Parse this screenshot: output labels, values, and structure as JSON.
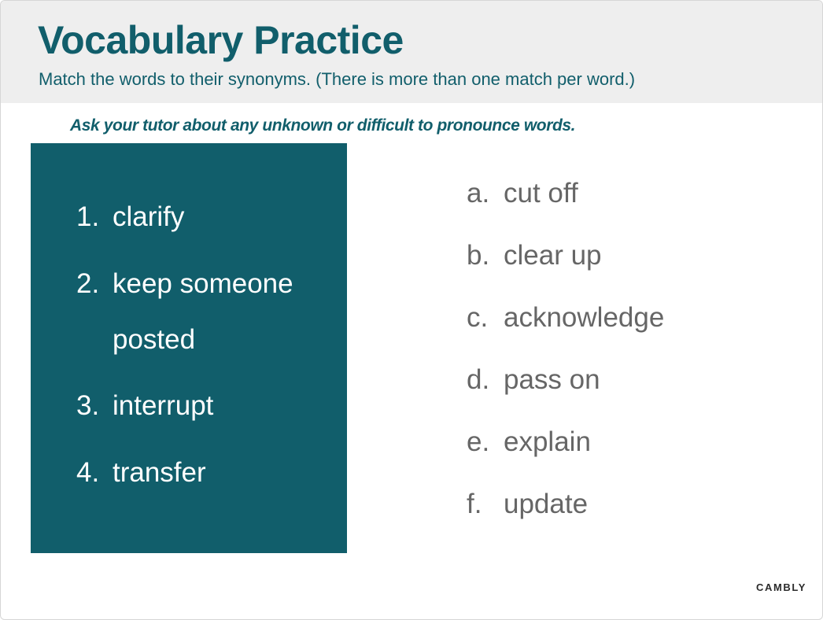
{
  "header": {
    "title": "Vocabulary Practice",
    "subtitle": "Match the words to their synonyms. (There is more than one match per word.)"
  },
  "instruction": "Ask your tutor about any unknown or difficult to pronounce words.",
  "words": [
    {
      "number": "1.",
      "text": "clarify",
      "continuation": ""
    },
    {
      "number": "2.",
      "text": "keep someone",
      "continuation": "posted"
    },
    {
      "number": "3.",
      "text": "interrupt",
      "continuation": ""
    },
    {
      "number": "4.",
      "text": "transfer",
      "continuation": ""
    }
  ],
  "synonyms": [
    {
      "letter": "a.",
      "text": "cut off"
    },
    {
      "letter": "b.",
      "text": "clear up"
    },
    {
      "letter": "c.",
      "text": "acknowledge"
    },
    {
      "letter": "d.",
      "text": "pass on"
    },
    {
      "letter": "e.",
      "text": "explain"
    },
    {
      "letter": "f.",
      "text": "update"
    }
  ],
  "brand": "CAMBLY",
  "colors": {
    "accent": "#115e6b",
    "header_bg": "#eeeeee",
    "synonym_text": "#666666"
  }
}
